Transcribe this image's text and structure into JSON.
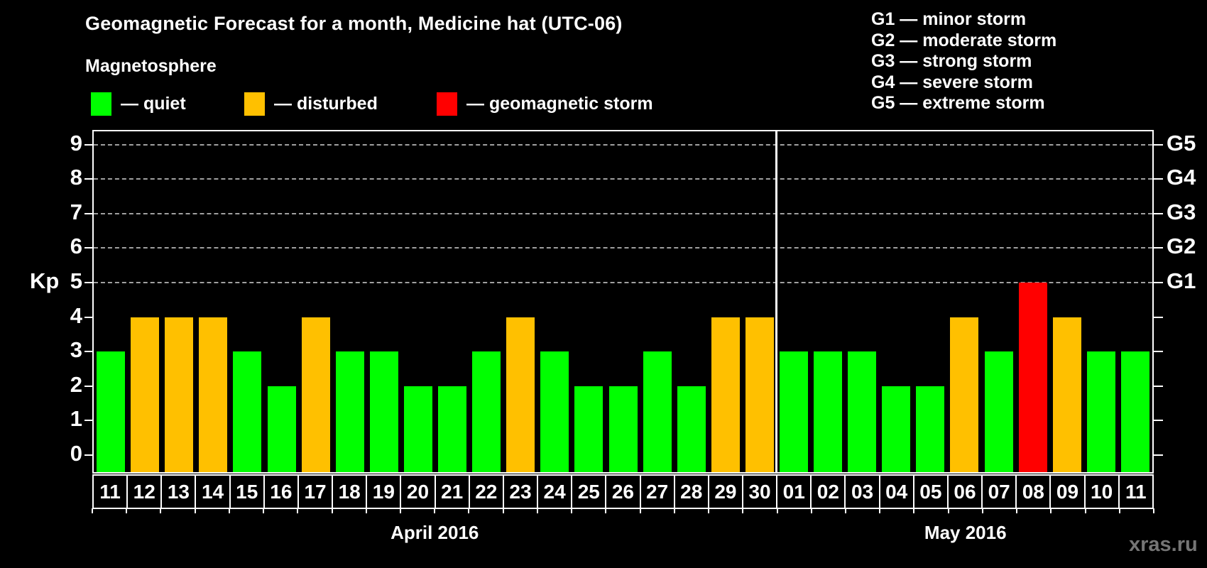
{
  "title": "Geomagnetic Forecast for a month, Medicine hat (UTC-06)",
  "subtitle": "Magnetosphere",
  "legend": [
    {
      "key": "quiet",
      "label": "— quiet",
      "color": "#00ff00"
    },
    {
      "key": "disturbed",
      "label": "— disturbed",
      "color": "#ffc000"
    },
    {
      "key": "storm",
      "label": "— geomagnetic storm",
      "color": "#ff0000"
    }
  ],
  "g_scale_legend": [
    "G1 — minor storm",
    "G2 — moderate storm",
    "G3 — strong storm",
    "G4 — severe storm",
    "G5 — extreme storm"
  ],
  "watermark": "xras.ru",
  "chart_data": {
    "type": "bar",
    "title": "Geomagnetic Forecast for a month, Medicine hat (UTC-06)",
    "ylabel": "Kp",
    "ylim": [
      0,
      9
    ],
    "yticks": [
      0,
      1,
      2,
      3,
      4,
      5,
      6,
      7,
      8,
      9
    ],
    "gridlines_at_kp": [
      5,
      6,
      7,
      8,
      9
    ],
    "grid": "dashed",
    "legend_position": "top-left",
    "right_axis": [
      {
        "label": "G1",
        "kp": 5
      },
      {
        "label": "G2",
        "kp": 6
      },
      {
        "label": "G3",
        "kp": 7
      },
      {
        "label": "G4",
        "kp": 8
      },
      {
        "label": "G5",
        "kp": 9
      }
    ],
    "months": [
      {
        "label": "April 2016",
        "start_index": 0,
        "count": 20
      },
      {
        "label": "May 2016",
        "start_index": 20,
        "count": 11
      }
    ],
    "categories": [
      "11",
      "12",
      "13",
      "14",
      "15",
      "16",
      "17",
      "18",
      "19",
      "20",
      "21",
      "22",
      "23",
      "24",
      "25",
      "26",
      "27",
      "28",
      "29",
      "30",
      "01",
      "02",
      "03",
      "04",
      "05",
      "06",
      "07",
      "08",
      "09",
      "10",
      "11"
    ],
    "values": [
      3,
      4,
      4,
      4,
      3,
      2,
      4,
      3,
      3,
      2,
      2,
      3,
      4,
      3,
      2,
      2,
      3,
      2,
      4,
      4,
      3,
      3,
      3,
      2,
      2,
      4,
      3,
      5,
      4,
      3,
      3
    ],
    "status": [
      "quiet",
      "disturbed",
      "disturbed",
      "disturbed",
      "quiet",
      "quiet",
      "disturbed",
      "quiet",
      "quiet",
      "quiet",
      "quiet",
      "quiet",
      "disturbed",
      "quiet",
      "quiet",
      "quiet",
      "quiet",
      "quiet",
      "disturbed",
      "disturbed",
      "quiet",
      "quiet",
      "quiet",
      "quiet",
      "quiet",
      "disturbed",
      "quiet",
      "storm",
      "disturbed",
      "quiet",
      "quiet"
    ]
  }
}
